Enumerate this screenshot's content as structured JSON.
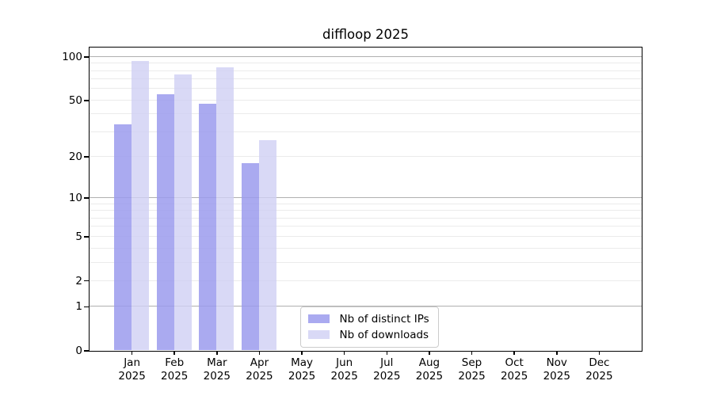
{
  "chart_data": {
    "type": "bar",
    "title": "diffloop 2025",
    "categories": [
      "Jan",
      "Feb",
      "Mar",
      "Apr",
      "May",
      "Jun",
      "Jul",
      "Aug",
      "Sep",
      "Oct",
      "Nov",
      "Dec"
    ],
    "category_year": "2025",
    "series": [
      {
        "name": "Nb of distinct IPs",
        "color": "#aaaaf0",
        "values": [
          34,
          55,
          47,
          18,
          null,
          null,
          null,
          null,
          null,
          null,
          null,
          null
        ]
      },
      {
        "name": "Nb of downloads",
        "color": "#d9d9f6",
        "values": [
          93,
          75,
          84,
          26,
          null,
          null,
          null,
          null,
          null,
          null,
          null,
          null
        ]
      }
    ],
    "y_scale": "log10(1+v)",
    "y_ticks": [
      0,
      1,
      2,
      5,
      10,
      20,
      50,
      100
    ],
    "y_major_gridlines": [
      1,
      10,
      100
    ],
    "y_minor_gridlines": [
      2,
      3,
      4,
      5,
      6,
      7,
      8,
      9,
      20,
      30,
      40,
      50,
      60,
      70,
      80,
      90
    ],
    "ylim": [
      0,
      116
    ],
    "xlabel": "",
    "ylabel": "",
    "grid": true,
    "legend_position": "lower center",
    "colors": {
      "major_grid": "#b0b0b0",
      "minor_grid": "#ebebeb",
      "axis": "#000000",
      "background": "#ffffff"
    }
  }
}
